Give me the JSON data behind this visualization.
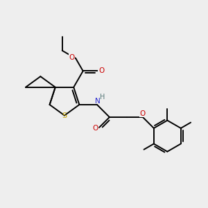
{
  "bg_color": "#eeeeee",
  "atom_colors": {
    "C": "#000000",
    "S": "#ccaa00",
    "N": "#2222cc",
    "O": "#cc0000",
    "H": "#557777"
  },
  "bond_lw": 1.4,
  "label_fs": 7.5
}
